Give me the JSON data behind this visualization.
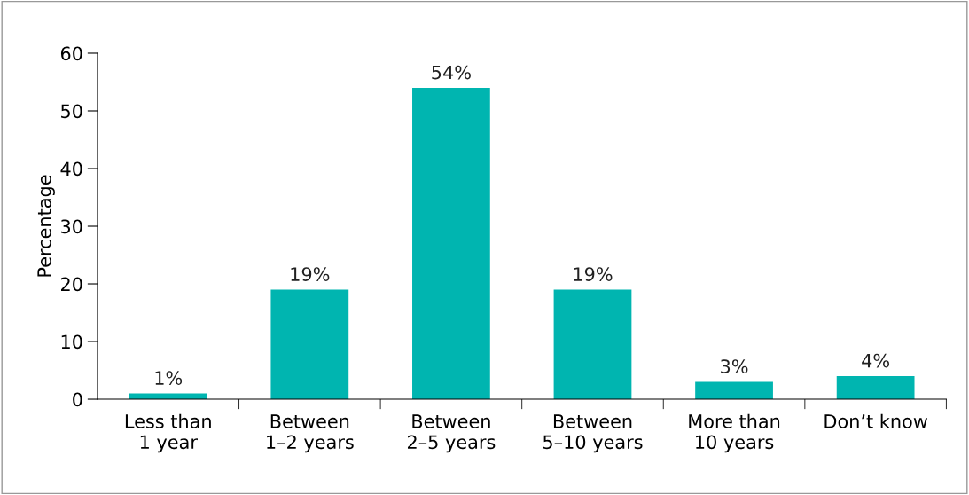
{
  "chart_data": {
    "type": "bar",
    "ylabel": "Percentage",
    "categories": [
      "Less than\n1 year",
      "Between\n1–2 years",
      "Between\n2–5 years",
      "Between\n5–10 years",
      "More than\n10 years",
      "Don’t know"
    ],
    "values": [
      1,
      19,
      54,
      19,
      3,
      4
    ],
    "value_labels": [
      "1%",
      "19%",
      "54%",
      "19%",
      "3%",
      "4%"
    ],
    "color": "#00b5b0",
    "ylim": [
      0,
      60
    ],
    "yticks": [
      0,
      10,
      20,
      30,
      40,
      50,
      60
    ],
    "grid": false,
    "legend": false
  }
}
